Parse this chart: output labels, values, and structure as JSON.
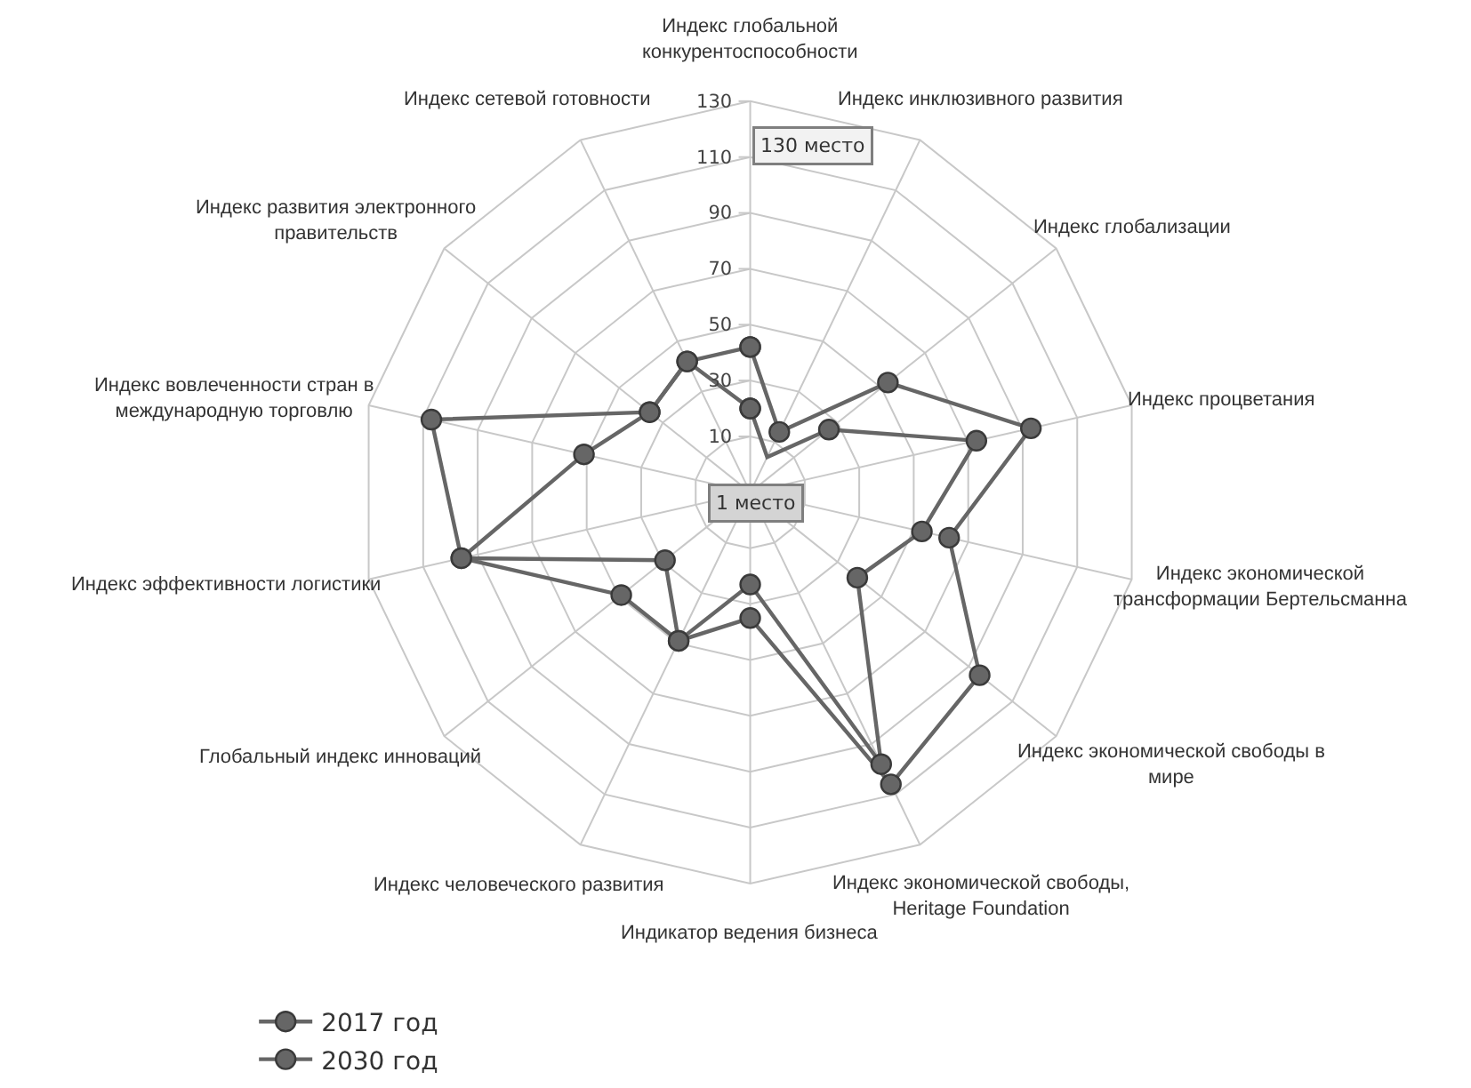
{
  "chart_data": {
    "type": "radar",
    "categories": [
      "Индекс глобальной конкурентоспособности",
      "Индекс инклюзивного развития",
      "Индекс глобализации",
      "Индекс процветания",
      "Индекс экономической трансформации Бертельсманна",
      "Индекс экономической свободы в мире",
      "Индекс экономической свободы, Heritage Foundation",
      "Индикатор ведения бизнеса",
      "Индекс человеческого развития",
      "Глобальный индекс инноваций",
      "Индекс эффективности логистики",
      "Индекс вовлеченности стран в международную торговлю",
      "Индекс развития электронного правительств",
      "Индекс сетевой готовности"
    ],
    "series": [
      {
        "name": "2017 год",
        "color": "#666666",
        "values": [
          42,
          14,
          53,
          93,
          63,
          95,
          106,
          35,
          49,
          49,
          96,
          107,
          36,
          42
        ]
      },
      {
        "name": "2030 год",
        "color": "#666666",
        "values": [
          20,
          4,
          26,
          73,
          53,
          39,
          98,
          23,
          49,
          29,
          96,
          51,
          36,
          42
        ]
      }
    ],
    "ylim": [
      -10,
      130
    ],
    "yticks": [
      10,
      30,
      50,
      70,
      90,
      110,
      130
    ],
    "annotations": [
      "130 место",
      "1 место"
    ],
    "grid": true,
    "legend": "bottom left",
    "marker": "circle",
    "line_style": "solid"
  }
}
